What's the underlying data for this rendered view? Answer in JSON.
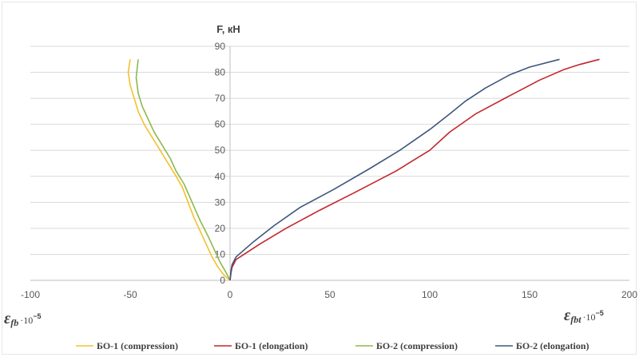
{
  "chart_data": {
    "type": "line",
    "ylabel": "F, кН",
    "xlabel_left": {
      "symbol": "ε",
      "sub": "fb",
      "rest": "·10",
      "sup": "−5"
    },
    "xlabel_right": {
      "symbol": "ε",
      "sub": "fbt",
      "rest": "·10",
      "sup": "−5"
    },
    "xlim": [
      -100,
      200
    ],
    "ylim": [
      0,
      90
    ],
    "xticks": [
      -100,
      -50,
      0,
      50,
      100,
      150,
      200
    ],
    "yticks": [
      0,
      10,
      20,
      30,
      40,
      50,
      60,
      70,
      80,
      90
    ],
    "grid": "horizontal",
    "legend_position": "bottom",
    "series": [
      {
        "name": "БО-1 (compression)",
        "color": "#f5c02c",
        "x": [
          0,
          -3,
          -6,
          -9,
          -12,
          -15,
          -18,
          -21,
          -24,
          -27,
          -31,
          -35,
          -39,
          -43,
          -46,
          -48,
          -50,
          -51,
          -50
        ],
        "y": [
          0,
          2,
          5,
          9,
          14,
          19,
          24,
          30,
          36,
          40,
          45,
          50,
          55,
          60,
          65,
          70,
          75,
          80,
          85
        ]
      },
      {
        "name": "БО-1 (elongation)",
        "color": "#c3262b",
        "x": [
          0,
          0.5,
          1,
          3,
          7,
          15,
          28,
          45,
          63,
          83,
          100,
          110,
          123,
          140,
          155,
          167,
          175,
          185
        ],
        "y": [
          0,
          3,
          5,
          8,
          10,
          14,
          20,
          27,
          34,
          42,
          50,
          57,
          64,
          71,
          77,
          81,
          83,
          85
        ]
      },
      {
        "name": "БО-2 (compression)",
        "color": "#8db94f",
        "x": [
          0,
          -2,
          -5,
          -8,
          -11,
          -15,
          -19,
          -23,
          -27,
          -30,
          -34,
          -38,
          -41,
          -44,
          -46,
          -47,
          -46
        ],
        "y": [
          0,
          3,
          7,
          12,
          17,
          23,
          30,
          37,
          42,
          47,
          52,
          57,
          62,
          67,
          72,
          78,
          85
        ]
      },
      {
        "name": "БО-2 (elongation)",
        "color": "#3e567e",
        "x": [
          0,
          0.5,
          1,
          3,
          6,
          12,
          22,
          35,
          52,
          70,
          85,
          100,
          110,
          118,
          128,
          140,
          150,
          165
        ],
        "y": [
          0,
          4,
          6,
          9,
          11,
          15,
          21,
          28,
          35,
          43,
          50,
          58,
          64,
          69,
          74,
          79,
          82,
          85
        ]
      }
    ]
  }
}
